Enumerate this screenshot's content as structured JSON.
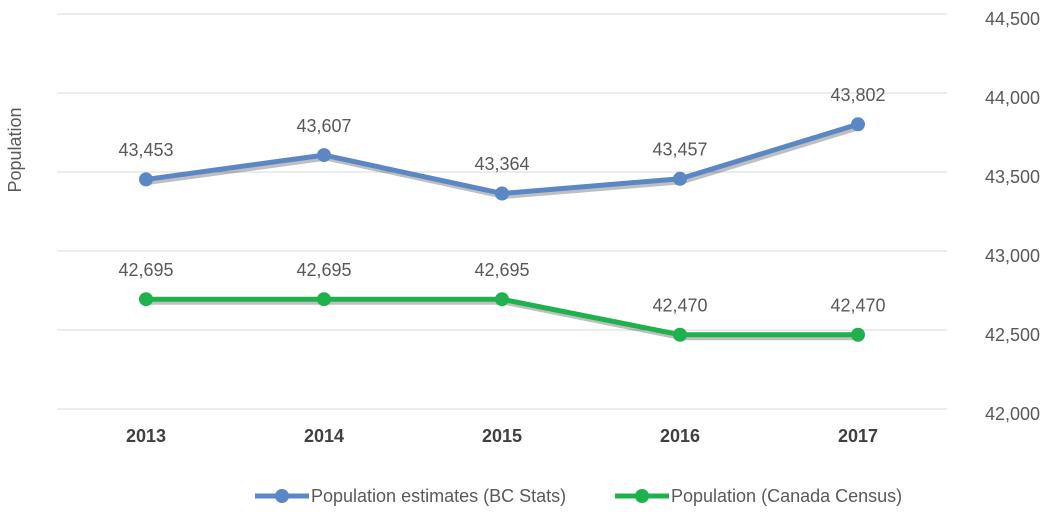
{
  "chart_data": {
    "type": "line",
    "y_axis_label": "Population",
    "categories": [
      "2013",
      "2014",
      "2015",
      "2016",
      "2017"
    ],
    "series": [
      {
        "name": "Population estimates (BC Stats)",
        "color": "#5b87c5",
        "values": [
          43453,
          43607,
          43364,
          43457,
          43802
        ],
        "value_labels": [
          "43,453",
          "43,607",
          "43,364",
          "43,457",
          "43,802"
        ]
      },
      {
        "name": "Population (Canada Census)",
        "color": "#1fb14e",
        "values": [
          42695,
          42695,
          42695,
          42470,
          42470
        ],
        "value_labels": [
          "42,695",
          "42,695",
          "42,695",
          "42,470",
          "42,470"
        ]
      }
    ],
    "ylim": [
      42000,
      44500
    ],
    "yticks": [
      {
        "value": 42000,
        "label": "42,000"
      },
      {
        "value": 42500,
        "label": "42,500"
      },
      {
        "value": 43000,
        "label": "43,000"
      },
      {
        "value": 43500,
        "label": "43,500"
      },
      {
        "value": 44000,
        "label": "44,000"
      },
      {
        "value": 44500,
        "label": "44,500"
      }
    ],
    "grid": true,
    "legend": "bottom"
  }
}
